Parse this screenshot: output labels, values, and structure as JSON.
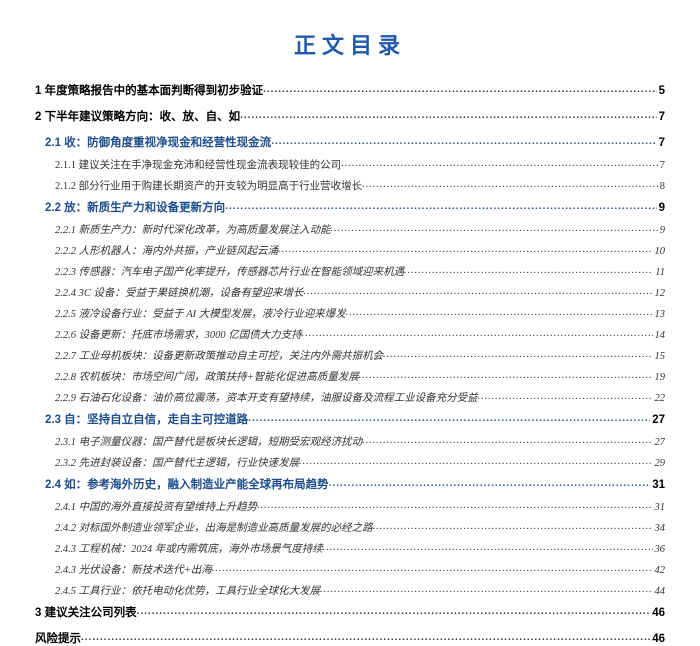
{
  "title": "正文目录",
  "title_color": "#1f5aa8",
  "entries": [
    {
      "level": 1,
      "label": "1 年度策略报告中的基本面判断得到初步验证",
      "page": "5"
    },
    {
      "level": 1,
      "label": "2 下半年建议策略方向：收、放、自、如",
      "page": "7"
    },
    {
      "level": 2,
      "label": "2.1 收：防御角度重视净现金和经营性现金流",
      "page": "7"
    },
    {
      "level": 3,
      "label": "2.1.1 建议关注在手净现金充沛和经营性现金流表现较佳的公司",
      "page": "7"
    },
    {
      "level": 3,
      "label": "2.1.2 部分行业用于购建长期资产的开支较为明显高于行业营收增长",
      "page": "8"
    },
    {
      "level": 2,
      "label": "2.2 放：新质生产力和设备更新方向",
      "page": "9"
    },
    {
      "level": 3,
      "italic": true,
      "label": "2.2.1 新质生产力：新时代深化改革，为高质量发展注入动能",
      "page": "9"
    },
    {
      "level": 3,
      "italic": true,
      "label": "2.2.2 人形机器人：海内外共振，产业链风起云涌",
      "page": "10"
    },
    {
      "level": 3,
      "italic": true,
      "label": "2.2.3 传感器：汽车电子国产化率提升，传感器芯片行业在智能领域迎来机遇",
      "page": "11"
    },
    {
      "level": 3,
      "italic": true,
      "label": "2.2.4 3C 设备：受益于果链换机潮，设备有望迎来增长",
      "page": "12"
    },
    {
      "level": 3,
      "italic": true,
      "label": "2.2.5 液冷设备行业：受益于 AI 大模型发展，液冷行业迎来爆发",
      "page": "13"
    },
    {
      "level": 3,
      "italic": true,
      "label": "2.2.6 设备更新：托底市场需求，3000 亿国债大力支持",
      "page": "14"
    },
    {
      "level": 3,
      "italic": true,
      "label": "2.2.7 工业母机板块：设备更新政策推动自主可控，关注内外需共振机会",
      "page": "15"
    },
    {
      "level": 3,
      "italic": true,
      "label": "2.2.8 农机板块：市场空间广阔，政策扶持+智能化促进高质量发展",
      "page": "19"
    },
    {
      "level": 3,
      "italic": true,
      "label": "2.2.9 石油石化设备：油价高位震荡，资本开支有望持续，油服设备及流程工业设备充分受益",
      "page": "22"
    },
    {
      "level": 2,
      "label": "2.3 自：坚持自立自信，走自主可控道路",
      "page": "27"
    },
    {
      "level": 3,
      "italic": true,
      "label": "2.3.1 电子测量仪器：国产替代是板块长逻辑，短期受宏观经济扰动",
      "page": "27"
    },
    {
      "level": 3,
      "italic": true,
      "label": "2.3.2 先进封装设备：国产替代主逻辑，行业快速发展",
      "page": "29"
    },
    {
      "level": 2,
      "label": "2.4 如：参考海外历史，融入制造业产能全球再布局趋势",
      "page": "31"
    },
    {
      "level": 3,
      "italic": true,
      "label": "2.4.1 中国的海外直接投资有望维持上升趋势",
      "page": "31"
    },
    {
      "level": 3,
      "italic": true,
      "label": "2.4.2 对标国外制造业领军企业，出海是制造业高质量发展的必经之路",
      "page": "34"
    },
    {
      "level": 3,
      "italic": true,
      "label": "2.4.3 工程机械：2024 年或内需筑底，海外市场景气度持续",
      "page": "36"
    },
    {
      "level": 3,
      "italic": true,
      "label": "2.4.3 光伏设备：新技术迭代+出海",
      "page": "42"
    },
    {
      "level": 3,
      "italic": true,
      "label": "2.4.5 工具行业：依托电动化优势，工具行业全球化大发展",
      "page": "44"
    },
    {
      "level": 1,
      "label": "3 建议关注公司列表",
      "page": "46"
    },
    {
      "level": 1,
      "label": "风险提示",
      "page": "46"
    }
  ]
}
